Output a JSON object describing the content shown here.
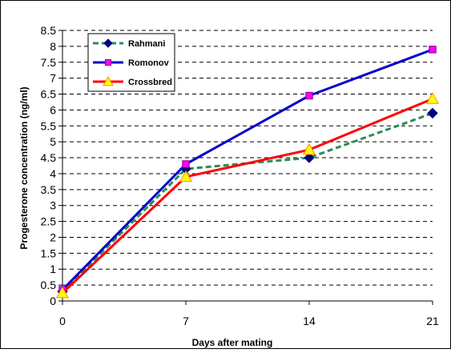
{
  "chart_data": {
    "type": "line",
    "title": "",
    "xlabel": "Days after mating",
    "ylabel": "Progesterone concentration (ng/ml)",
    "x": [
      0,
      7,
      14,
      21
    ],
    "xticks": [
      "0",
      "7",
      "14",
      "21"
    ],
    "ylim": [
      0,
      8.5
    ],
    "yticks": [
      "0",
      "0.5",
      "1",
      "1.5",
      "2",
      "2.5",
      "3",
      "3.5",
      "4",
      "4.5",
      "5",
      "5.5",
      "6",
      "6.5",
      "7",
      "7.5",
      "8",
      "8.5"
    ],
    "grid": true,
    "legend_position": "top-left",
    "series": [
      {
        "name": "Rahmani",
        "values": [
          0.3,
          4.15,
          4.5,
          5.9
        ],
        "color": "#2e8b57",
        "marker_color": "#000080",
        "marker": "diamond",
        "dash": true
      },
      {
        "name": "Romonov",
        "values": [
          0.35,
          4.3,
          6.45,
          7.9
        ],
        "color": "#0000cd",
        "marker_color": "#ff00ff",
        "marker": "square",
        "dash": false
      },
      {
        "name": "Crossbred",
        "values": [
          0.25,
          3.9,
          4.75,
          6.35
        ],
        "color": "#ff0000",
        "marker_color": "#ffff00",
        "marker": "triangle",
        "dash": false
      }
    ]
  }
}
